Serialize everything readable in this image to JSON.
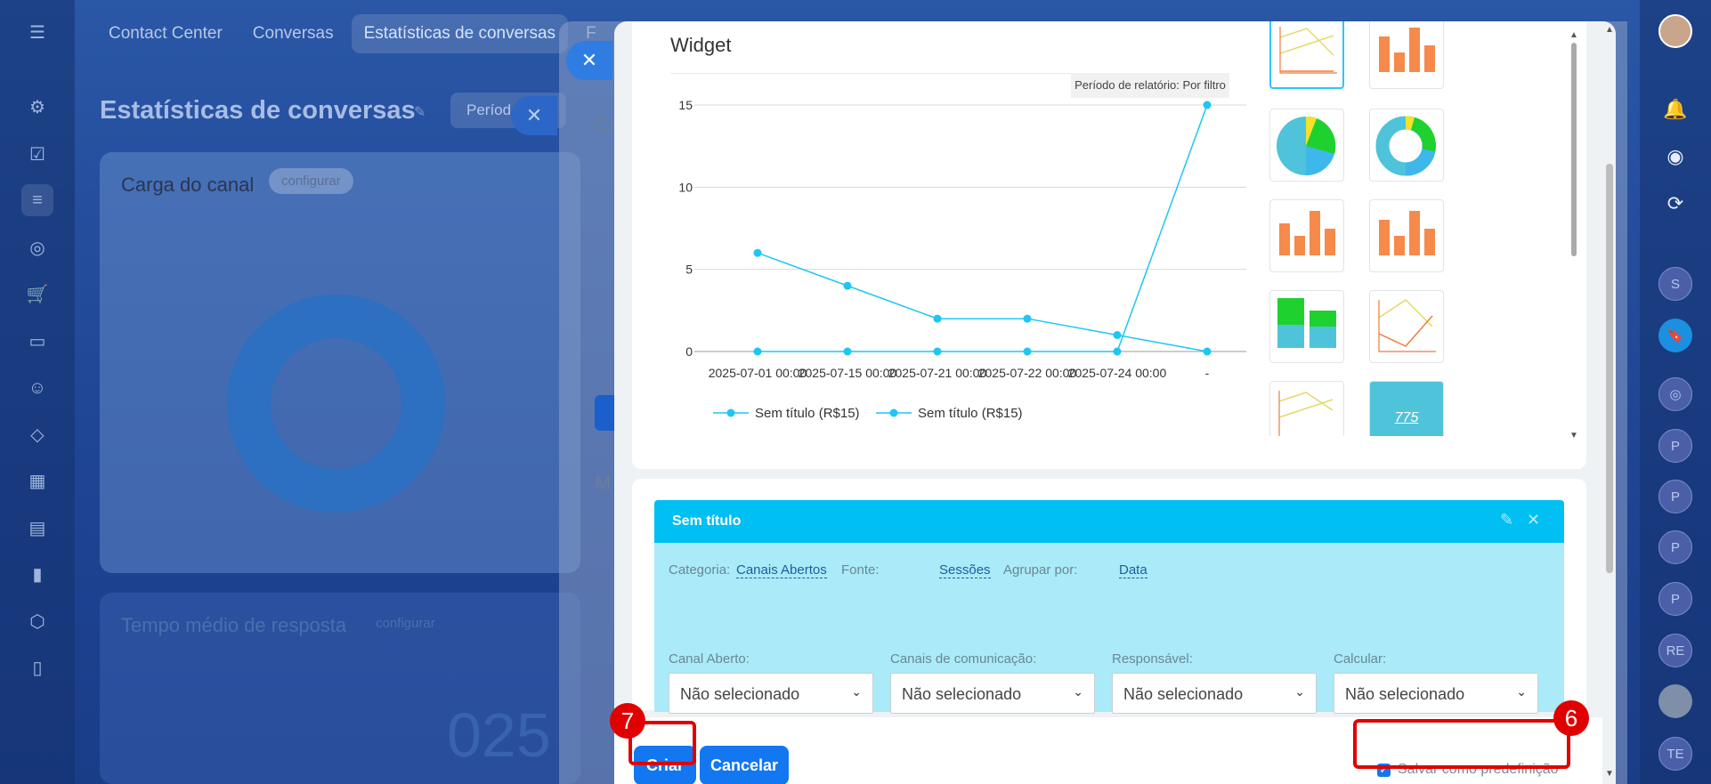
{
  "background": {
    "nav_tabs": [
      "Contact Center",
      "Conversas",
      "Estatísticas de conversas",
      "F"
    ],
    "page_title": "Estatísticas de conversas",
    "period_chip": "Períod",
    "card1": {
      "title": "Carga do canal",
      "configure": "configurar"
    },
    "card2": {
      "title": "Tempo médio de resposta",
      "configure": "configurar",
      "value": "025"
    },
    "stack_labels": [
      "Ca",
      "M"
    ],
    "right_rail_avatars": [
      "S",
      "P",
      "P",
      "P",
      "P",
      "RE",
      "TE"
    ]
  },
  "preview": {
    "title": "Widget",
    "period_label": "Período de relatório: Por filtro"
  },
  "chart_data": {
    "type": "line",
    "categories": [
      "2025-07-01 00:00",
      "2025-07-15 00:00",
      "2025-07-21 00:00",
      "2025-07-22 00:00",
      "2025-07-24 00:00",
      "-"
    ],
    "series": [
      {
        "name": "Sem título (R$15)",
        "values": [
          6,
          4,
          2,
          2,
          1,
          0
        ]
      },
      {
        "name": "Sem título (R$15)",
        "values": [
          0,
          0,
          0,
          0,
          0,
          15
        ]
      }
    ],
    "yticks": [
      0,
      5,
      10,
      15
    ],
    "ylim": [
      0,
      15
    ],
    "legend": "bottom-left",
    "color": "#1ec6f3"
  },
  "settings": {
    "title": "Sem título",
    "category_label": "Categoria:",
    "category_value": "Canais Abertos",
    "source_label": "Fonte:",
    "source_value": "Sessões",
    "group_label": "Agrupar por:",
    "group_value": "Data",
    "fields": [
      {
        "label": "Canal Aberto:",
        "value": "Não selecionado"
      },
      {
        "label": "Canais de comunicação:",
        "value": "Não selecionado"
      },
      {
        "label": "Responsável:",
        "value": "Não selecionado"
      },
      {
        "label": "Calcular:",
        "value": "Não selecionado"
      }
    ]
  },
  "footer": {
    "create_label": "Criar",
    "cancel_label": "Cancelar",
    "save_default_label": "Salvar como predefinição",
    "save_default_checked": true
  },
  "annotations": {
    "create_step": "7",
    "save_step": "6",
    "color": "#e00000"
  },
  "thumbs": {
    "counter_value": "775"
  }
}
